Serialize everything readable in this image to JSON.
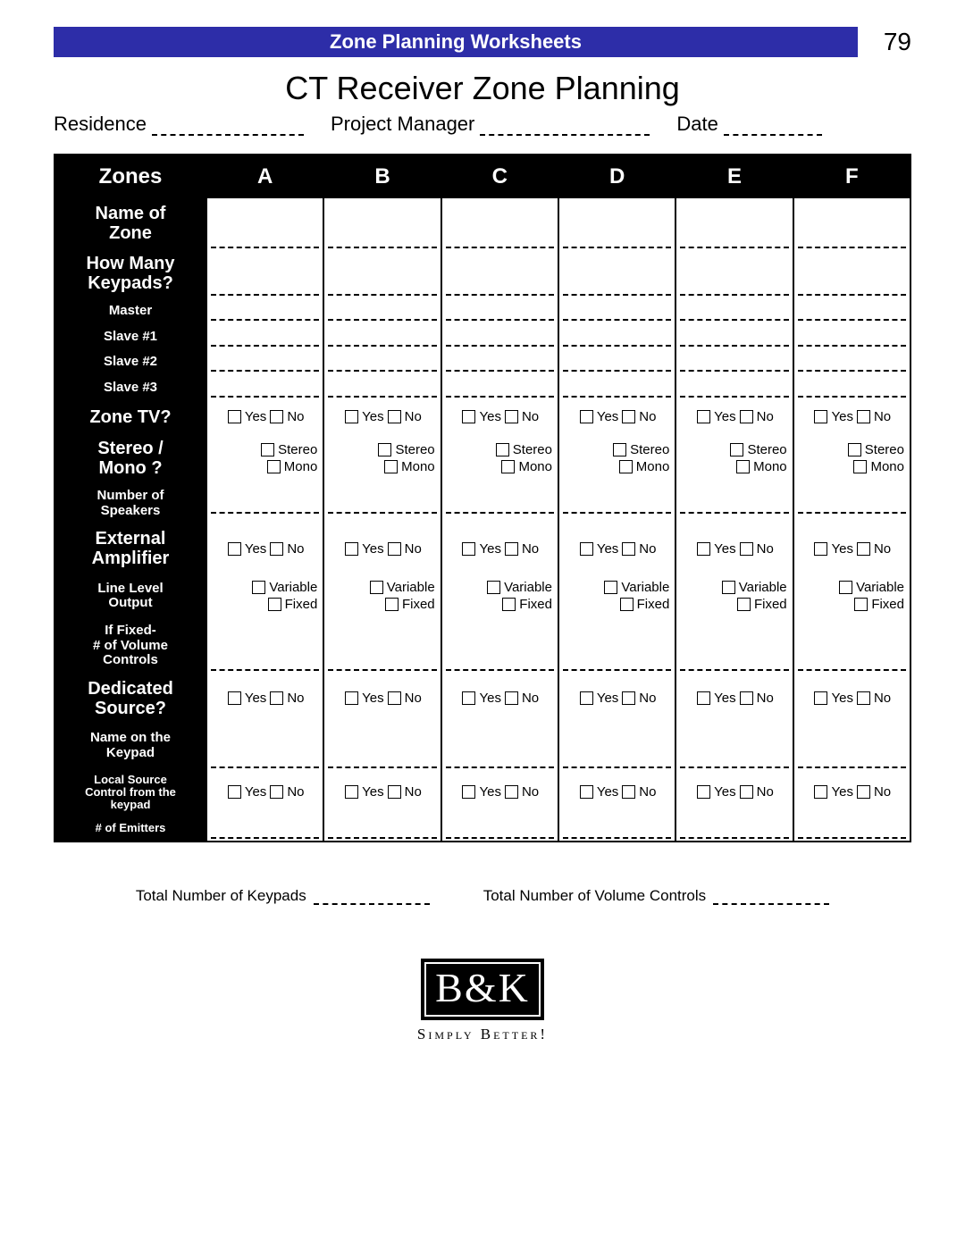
{
  "banner_title": "Zone Planning Worksheets",
  "page_number": "79",
  "main_title": "CT Receiver Zone Planning",
  "info_fields": {
    "residence": "Residence",
    "project_manager": "Project Manager",
    "date": "Date"
  },
  "zone_columns": [
    "A",
    "B",
    "C",
    "D",
    "E",
    "F"
  ],
  "zones_header": "Zones",
  "rows": {
    "name_of_zone": "Name of\nZone",
    "how_many_keypads": "How Many\nKeypads?",
    "master": "Master",
    "slave1": "Slave #1",
    "slave2": "Slave #2",
    "slave3": "Slave #3",
    "zone_tv": "Zone TV?",
    "stereo_mono": "Stereo /\nMono ?",
    "num_speakers": "Number of\nSpeakers",
    "ext_amp": "External\nAmplifier",
    "line_level": "Line Level\nOutput",
    "if_fixed": "If Fixed-\n# of Volume\nControls",
    "dedicated": "Dedicated\nSource?",
    "keypad_name": "Name on the\nKeypad",
    "local_src": "Local Source\nControl from the\nkeypad",
    "emitters": "# of Emitters"
  },
  "options": {
    "yes": "Yes",
    "no": "No",
    "stereo": "Stereo",
    "mono": "Mono",
    "variable": "Variable",
    "fixed": "Fixed"
  },
  "totals": {
    "keypads": "Total Number of Keypads",
    "vol_controls": "Total Number of Volume Controls"
  },
  "logo": {
    "brand": "B&K",
    "tagline": "Simply Better!"
  }
}
